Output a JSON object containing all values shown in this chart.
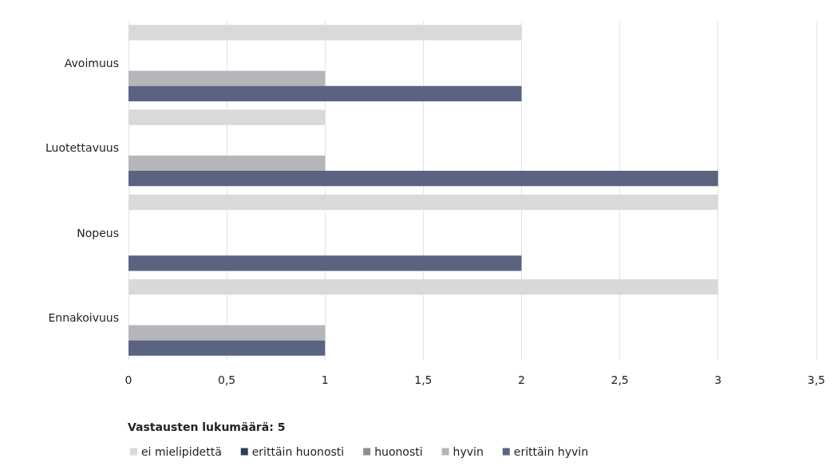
{
  "chart_data": {
    "type": "bar",
    "orientation": "horizontal",
    "categories": [
      "Avoimuus",
      "Luotettavuus",
      "Nopeus",
      "Ennakoivuus"
    ],
    "series": [
      {
        "name": "ei mielipidettä",
        "color": "#d9d9db",
        "values": [
          2,
          1,
          3,
          3
        ]
      },
      {
        "name": "erittäin huonosti",
        "color": "#2e3e5a",
        "values": [
          0,
          0,
          0,
          0
        ]
      },
      {
        "name": "huonosti",
        "color": "#8a8d96",
        "values": [
          0,
          0,
          0,
          0
        ]
      },
      {
        "name": "hyvin",
        "color": "#b4b6ba",
        "values": [
          1,
          1,
          0,
          1
        ]
      },
      {
        "name": "erittäin hyvin",
        "color": "#5a6480",
        "values": [
          2,
          3,
          2,
          1
        ]
      }
    ],
    "xlim": [
      0,
      3.5
    ],
    "xticks": [
      0,
      {
        "value": 0.5,
        "label": "0,5"
      },
      1,
      {
        "value": 1.5,
        "label": "1,5"
      },
      2,
      {
        "value": 2.5,
        "label": "2,5"
      },
      3,
      {
        "value": 3.5,
        "label": "3,5"
      }
    ],
    "annotations": [
      "Vastausten lukumäärä: 5"
    ],
    "grid": "x",
    "legend": "bottom"
  }
}
